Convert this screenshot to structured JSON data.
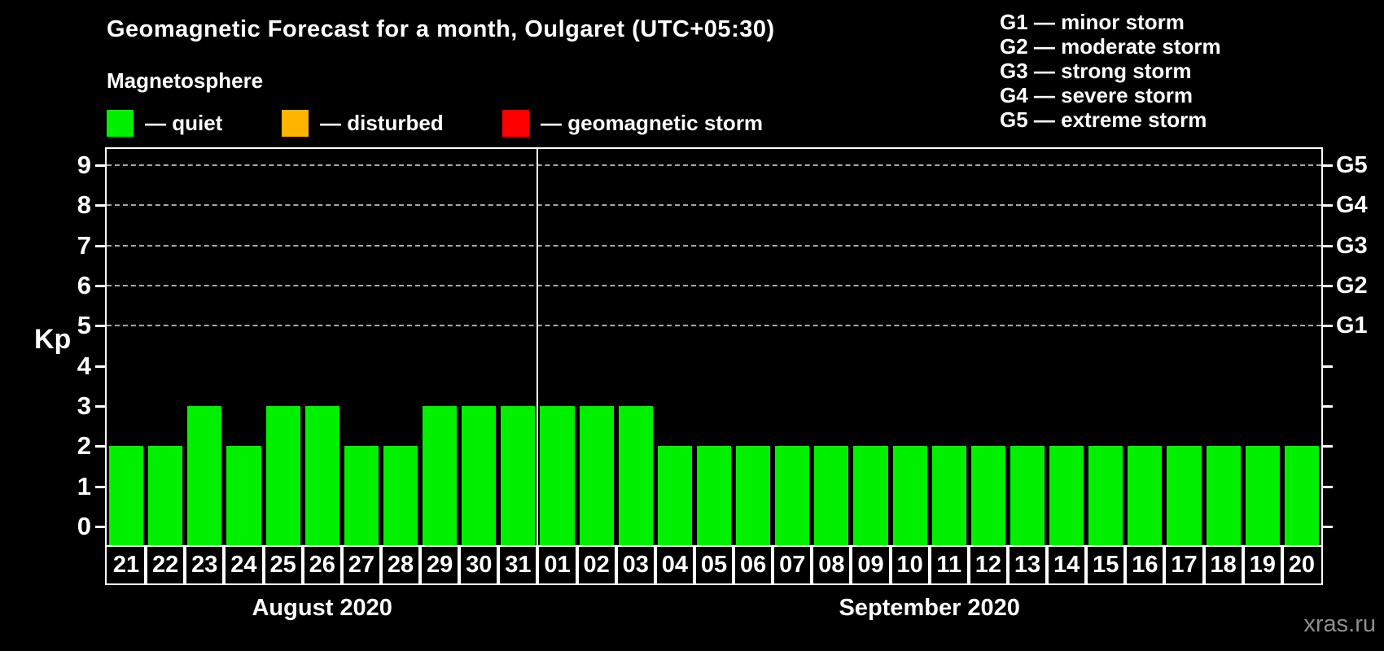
{
  "header": {
    "title": "Geomagnetic Forecast for a month, Oulgaret (UTC+05:30)",
    "subtitle": "Magnetosphere"
  },
  "legend": [
    {
      "label": "— quiet",
      "color": "#00f000"
    },
    {
      "label": "— disturbed",
      "color": "#ffb400"
    },
    {
      "label": "— geomagnetic storm",
      "color": "#ff0000"
    }
  ],
  "storm_legend": [
    "G1 — minor storm",
    "G2 — moderate storm",
    "G3 — strong storm",
    "G4 — severe storm",
    "G5 — extreme storm"
  ],
  "axes": {
    "ylabel": "Kp"
  },
  "watermark": "xras.ru",
  "chart_data": {
    "type": "bar",
    "categories": [
      "21",
      "22",
      "23",
      "24",
      "25",
      "26",
      "27",
      "28",
      "29",
      "30",
      "31",
      "01",
      "02",
      "03",
      "04",
      "05",
      "06",
      "07",
      "08",
      "09",
      "10",
      "11",
      "12",
      "13",
      "14",
      "15",
      "16",
      "17",
      "18",
      "19",
      "20"
    ],
    "values": [
      2,
      2,
      3,
      2,
      3,
      3,
      2,
      2,
      3,
      3,
      3,
      3,
      3,
      3,
      2,
      2,
      2,
      2,
      2,
      2,
      2,
      2,
      2,
      2,
      2,
      2,
      2,
      2,
      2,
      2,
      2
    ],
    "months": [
      {
        "label": "August 2020",
        "days": 11
      },
      {
        "label": "September 2020",
        "days": 20
      }
    ],
    "title": "Geomagnetic Forecast for a month, Oulgaret (UTC+05:30)",
    "xlabel": "",
    "ylabel": "Kp",
    "ylim": [
      0,
      9
    ],
    "yticks": [
      0,
      1,
      2,
      3,
      4,
      5,
      6,
      7,
      8,
      9
    ],
    "right_axis_labels": [
      {
        "kp": 5,
        "label": "G1"
      },
      {
        "kp": 6,
        "label": "G2"
      },
      {
        "kp": 7,
        "label": "G3"
      },
      {
        "kp": 8,
        "label": "G4"
      },
      {
        "kp": 9,
        "label": "G5"
      }
    ],
    "grid_levels": [
      5,
      6,
      7,
      8,
      9
    ],
    "bar_color": "#00f000",
    "grid_color": "#a8a8a8",
    "legend_position": "top"
  }
}
